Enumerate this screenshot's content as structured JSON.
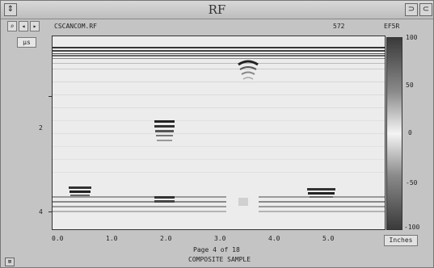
{
  "window": {
    "title": "RF"
  },
  "toolbar": {
    "file_name": "CSCANCOM.RF",
    "field_a": "572",
    "field_b": "EF5R"
  },
  "plot": {
    "unit_label": "µs",
    "y_ticks": [
      "2",
      "4"
    ],
    "x_ticks": [
      "0.0",
      "1.0",
      "2.0",
      "3.0",
      "4.0",
      "5.0"
    ],
    "page_text": "Page 4 of 18",
    "caption": "COMPOSITE SAMPLE",
    "units_button": "Inches"
  },
  "colorbar": {
    "ticks": [
      "100",
      "50",
      "0",
      "-50",
      "-100"
    ]
  },
  "chart_data": {
    "type": "heatmap",
    "title": "",
    "xlabel": "Inches",
    "ylabel": "µs",
    "xlim": [
      -0.1,
      6.5
    ],
    "ylim": [
      4.3,
      0.6
    ],
    "clim": [
      -100,
      100
    ],
    "x_tick_values": [
      0.0,
      1.0,
      2.0,
      3.0,
      4.0,
      5.0
    ],
    "y_tick_values": [
      2,
      4
    ],
    "colorbar_tick_values": [
      100,
      50,
      0,
      -50,
      -100
    ]
  }
}
